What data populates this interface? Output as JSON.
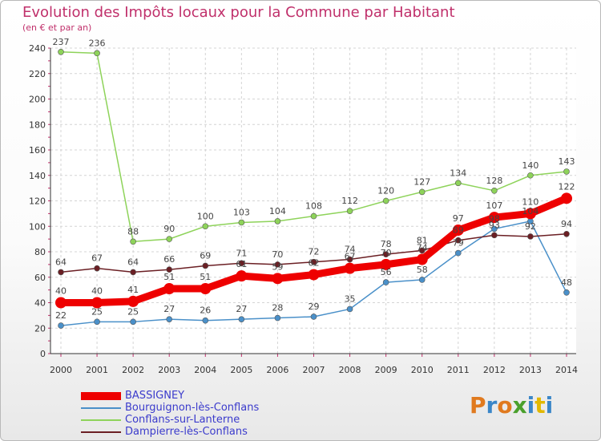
{
  "title": "Evolution des Impôts locaux pour la Commune par Habitant",
  "subtitle": "(en € et par an)",
  "logo": {
    "text": "Proxiti",
    "letter_colors": [
      "#e07a1f",
      "#3a86c8",
      "#e07a1f",
      "#4aa02c",
      "#3a86c8",
      "#e2b800",
      "#3a86c8"
    ]
  },
  "chart_data": {
    "type": "line",
    "x": [
      "2000",
      "2001",
      "2002",
      "2003",
      "2004",
      "2005",
      "2006",
      "2007",
      "2008",
      "2009",
      "2010",
      "2011",
      "2012",
      "2013",
      "2014"
    ],
    "ylim": [
      0,
      240
    ],
    "yticks": [
      0,
      20,
      40,
      60,
      80,
      100,
      120,
      140,
      160,
      180,
      200,
      220,
      240
    ],
    "grid": true,
    "legend_position": "bottom-left",
    "series": [
      {
        "name": "BASSIGNEY",
        "color": "#ee0000",
        "values": [
          40,
          40,
          41,
          51,
          51,
          61,
          59,
          62,
          67,
          70,
          74,
          97,
          107,
          110,
          122
        ]
      },
      {
        "name": "Bourguignon-lès-Conflans",
        "color": "#4a90c9",
        "values": [
          22,
          25,
          25,
          27,
          26,
          27,
          28,
          29,
          35,
          56,
          58,
          79,
          98,
          104,
          48
        ],
        "labels": [
          "22",
          "25",
          "25",
          "27",
          "26",
          "27",
          "28",
          "29",
          "35",
          "56",
          "58",
          "79",
          "98",
          "104",
          "48"
        ]
      },
      {
        "name": "Conflans-sur-Lanterne",
        "color": "#8ed35a",
        "values": [
          237,
          236,
          88,
          90,
          100,
          103,
          104,
          108,
          112,
          120,
          127,
          134,
          128,
          140,
          143
        ]
      },
      {
        "name": "Dampierre-lès-Conflans",
        "color": "#6b1f24",
        "values": [
          64,
          67,
          64,
          66,
          69,
          71,
          70,
          72,
          74,
          78,
          81,
          89,
          93,
          92,
          94
        ]
      }
    ]
  }
}
